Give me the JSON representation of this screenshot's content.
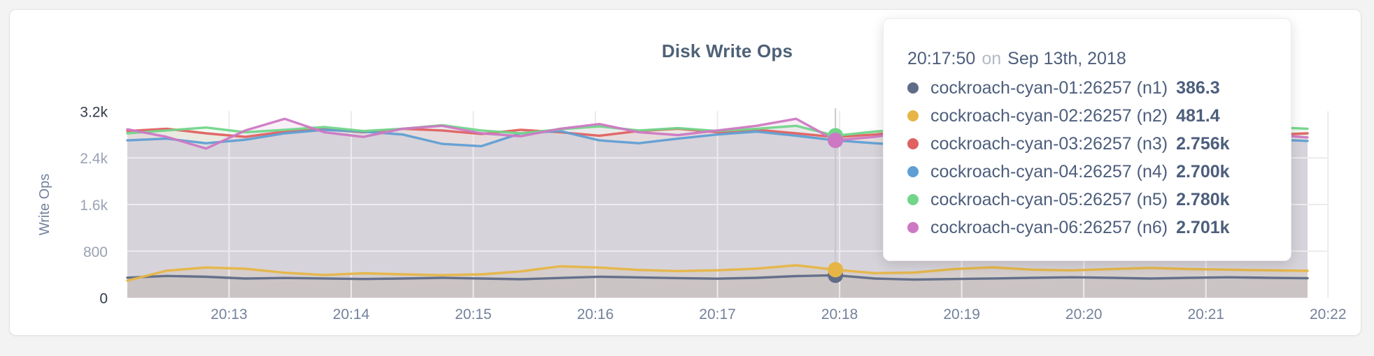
{
  "card": {
    "background": "#ffffff"
  },
  "chart_data": {
    "type": "line",
    "title": "Disk Write Ops",
    "ylabel": "Write Ops",
    "x_ticks": [
      "20:13",
      "20:14",
      "20:15",
      "20:16",
      "20:17",
      "20:18",
      "20:19",
      "20:20",
      "20:21",
      "20:22"
    ],
    "y_ticks": [
      {
        "label": "0",
        "value": 0,
        "emphasis": true
      },
      {
        "label": "800",
        "value": 800,
        "emphasis": false
      },
      {
        "label": "1.6k",
        "value": 1600,
        "emphasis": false
      },
      {
        "label": "2.4k",
        "value": 2400,
        "emphasis": false
      },
      {
        "label": "3.2k",
        "value": 3200,
        "emphasis": true
      }
    ],
    "ylim": [
      0,
      3200
    ],
    "grid": true,
    "legend_position": "tooltip",
    "x_range_time": [
      "20:12:10",
      "20:21:50"
    ],
    "hover_index": 18,
    "series": [
      {
        "name": "cockroach-cyan-01:26257 (n1)",
        "color": "#5f6c87",
        "hover_value": "386.3",
        "values": [
          345,
          375,
          360,
          330,
          340,
          332,
          322,
          330,
          342,
          330,
          318,
          340,
          362,
          350,
          338,
          328,
          342,
          372,
          386.3,
          330,
          312,
          322,
          332,
          342,
          352,
          342,
          330,
          342,
          352,
          342,
          335
        ]
      },
      {
        "name": "cockroach-cyan-02:26257 (n2)",
        "color": "#e6b545",
        "hover_value": "481.4",
        "values": [
          295,
          465,
          520,
          498,
          430,
          392,
          420,
          402,
          388,
          402,
          452,
          540,
          518,
          478,
          458,
          472,
          500,
          558,
          481.4,
          422,
          432,
          492,
          522,
          482,
          470,
          492,
          512,
          492,
          482,
          472,
          462
        ]
      },
      {
        "name": "cockroach-cyan-03:26257 (n3)",
        "color": "#e06161",
        "hover_value": "2.756k",
        "values": [
          2860,
          2900,
          2820,
          2760,
          2850,
          2890,
          2840,
          2900,
          2870,
          2810,
          2880,
          2840,
          2780,
          2860,
          2900,
          2840,
          2880,
          2820,
          2756,
          2800,
          2870,
          2820,
          2760,
          2850,
          2890,
          2830,
          2870,
          2900,
          2840,
          2790,
          2820
        ]
      },
      {
        "name": "cockroach-cyan-04:26257 (n4)",
        "color": "#5f9fd4",
        "hover_value": "2.700k",
        "values": [
          2700,
          2730,
          2650,
          2710,
          2820,
          2880,
          2850,
          2800,
          2640,
          2600,
          2820,
          2860,
          2700,
          2650,
          2730,
          2800,
          2850,
          2780,
          2700,
          2650,
          2610,
          2750,
          2820,
          2760,
          2700,
          2650,
          2700,
          2760,
          2800,
          2720,
          2690
        ]
      },
      {
        "name": "cockroach-cyan-05:26257 (n5)",
        "color": "#72d58a",
        "hover_value": "2.780k",
        "values": [
          2820,
          2870,
          2920,
          2840,
          2880,
          2930,
          2860,
          2900,
          2960,
          2870,
          2820,
          2890,
          2940,
          2870,
          2910,
          2860,
          2900,
          2950,
          2780,
          2850,
          2900,
          2860,
          2810,
          2870,
          2930,
          2960,
          2880,
          2840,
          2890,
          2930,
          2900
        ]
      },
      {
        "name": "cockroach-cyan-06:26257 (n6)",
        "color": "#cd78c3",
        "hover_value": "2.701k",
        "values": [
          2890,
          2760,
          2560,
          2870,
          3070,
          2840,
          2760,
          2900,
          2950,
          2820,
          2770,
          2900,
          2980,
          2840,
          2790,
          2870,
          2950,
          3070,
          2701,
          2760,
          2860,
          2950,
          2790,
          2730,
          2820,
          2890,
          2850,
          2770,
          2840,
          2800,
          2750
        ]
      }
    ]
  },
  "tooltip": {
    "time": "20:17:50",
    "on_label": "on",
    "date": "Sep 13th, 2018",
    "rows": [
      {
        "label": "cockroach-cyan-01:26257 (n1)",
        "value": "386.3",
        "color": "#5f6c87"
      },
      {
        "label": "cockroach-cyan-02:26257 (n2)",
        "value": "481.4",
        "color": "#e6b545"
      },
      {
        "label": "cockroach-cyan-03:26257 (n3)",
        "value": "2.756k",
        "color": "#e06161"
      },
      {
        "label": "cockroach-cyan-04:26257 (n4)",
        "value": "2.700k",
        "color": "#5f9fd4"
      },
      {
        "label": "cockroach-cyan-05:26257 (n5)",
        "value": "2.780k",
        "color": "#72d58a"
      },
      {
        "label": "cockroach-cyan-06:26257 (n6)",
        "value": "2.701k",
        "color": "#cd78c3"
      }
    ]
  }
}
